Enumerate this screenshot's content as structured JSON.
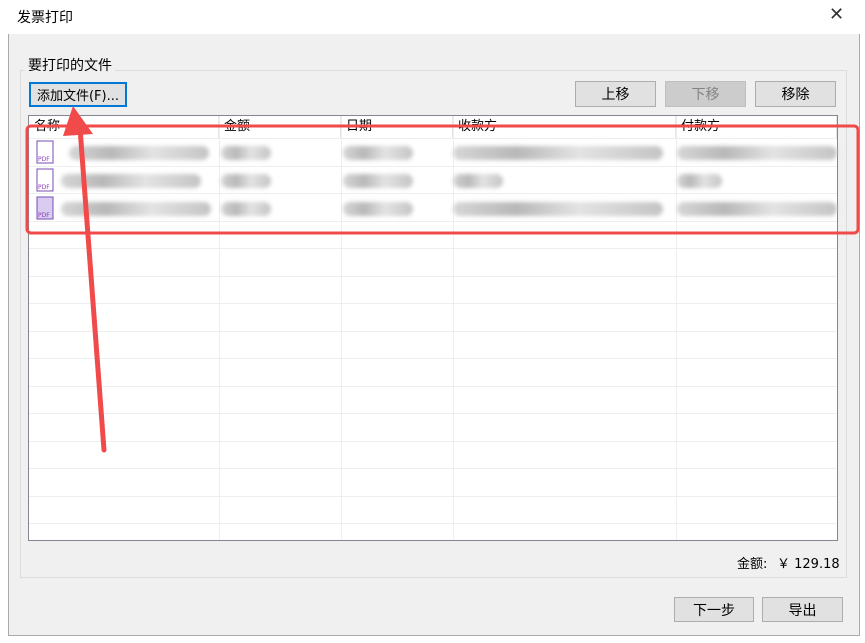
{
  "window": {
    "title": "发票打印"
  },
  "group": {
    "title": "要打印的文件"
  },
  "buttons": {
    "add": "添加文件(F)...",
    "up": "上移",
    "down": "下移",
    "remove": "移除",
    "next": "下一步",
    "export": "导出"
  },
  "table": {
    "columns": [
      "名称",
      "金额",
      "日期",
      "收款方",
      "付款方"
    ]
  },
  "total": {
    "label": "金额:",
    "value": "￥ 129.18"
  }
}
